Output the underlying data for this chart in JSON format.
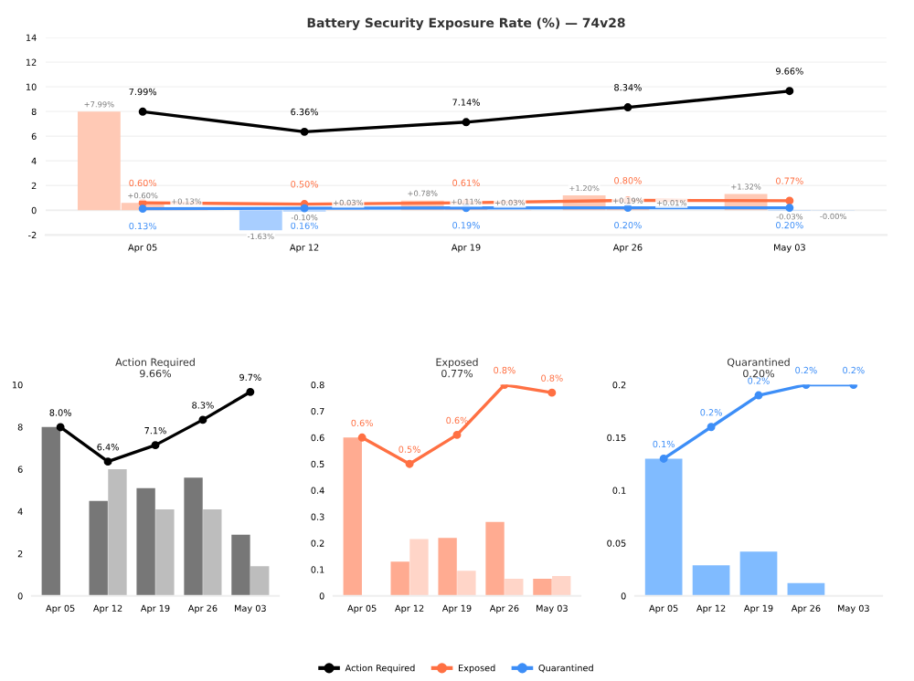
{
  "chart_data": [
    {
      "type": "line",
      "title": "Battery Security Exposure Rate (%) — 74v28",
      "categories": [
        "Apr 05",
        "Apr 12",
        "Apr 19",
        "Apr 26",
        "May 03"
      ],
      "ylim": [
        -2,
        14
      ],
      "yticks": [
        -2,
        0,
        2,
        4,
        6,
        8,
        10,
        12,
        14
      ],
      "grid": "y",
      "legend": "bottom",
      "marker": "circle",
      "line_style": "solid",
      "series": [
        {
          "type": "bar",
          "colors": [
            "#ffc9b5",
            "#a8ceff",
            "#ffc9b5",
            "#ffc9b5",
            "#ffc9b5"
          ],
          "values": [
            7.99,
            -1.63,
            0.78,
            1.2,
            1.32
          ],
          "value_labels": [
            "+7.99%",
            "-1.63%",
            "+0.78%",
            "+1.20%",
            "+1.32%"
          ]
        },
        {
          "type": "bar",
          "colors": [
            "#ffc9b5",
            "#a8ceff",
            "#ffc9b5",
            "#ffc9b5",
            "#a8ceff"
          ],
          "values": [
            0.6,
            -0.1,
            0.11,
            0.19,
            -0.03
          ],
          "value_labels": [
            "+0.60%",
            "-0.10%",
            "+0.11%",
            "+0.19%",
            "-0.03%"
          ]
        },
        {
          "type": "bar",
          "colors": [
            "#ffc9b5",
            "#ffc9b5",
            "#ffc9b5",
            "#ffc9b5",
            "#a8ceff"
          ],
          "values": [
            0.13,
            0.03,
            0.03,
            0.01,
            -0.004
          ],
          "value_labels": [
            "+0.13%",
            "+0.03%",
            "+0.03%",
            "+0.01%",
            "-0.00%"
          ]
        },
        {
          "type": "line",
          "name": "Action Required",
          "color": "#000000",
          "values": [
            7.99,
            6.36,
            7.14,
            8.34,
            9.66
          ],
          "value_labels": [
            "7.99%",
            "6.36%",
            "7.14%",
            "8.34%",
            "9.66%"
          ]
        },
        {
          "type": "line",
          "name": "Exposed",
          "color": "#ff7043",
          "values": [
            0.6,
            0.5,
            0.61,
            0.8,
            0.77
          ],
          "value_labels": [
            "0.60%",
            "0.50%",
            "0.61%",
            "0.80%",
            "0.77%"
          ]
        },
        {
          "type": "line",
          "name": "Quarantined",
          "color": "#3d8ef7",
          "values": [
            0.13,
            0.16,
            0.19,
            0.2,
            0.2
          ],
          "value_labels": [
            "0.13%",
            "0.16%",
            "0.19%",
            "0.20%",
            "0.20%"
          ]
        }
      ]
    },
    {
      "type": "bar",
      "title": "Action Required",
      "subtitle": "9.66%",
      "categories": [
        "Apr 05",
        "Apr 12",
        "Apr 19",
        "Apr 26",
        "May 03"
      ],
      "ylim": [
        0,
        10
      ],
      "yticks": [
        0,
        2,
        4,
        6,
        8,
        10
      ],
      "marker": "circle",
      "line_style": "solid",
      "series": [
        {
          "color": "#777777",
          "values": [
            8.0,
            4.5,
            5.1,
            5.6,
            2.9
          ]
        },
        {
          "color": "#bdbdbd",
          "values": [
            null,
            6.0,
            4.1,
            4.1,
            1.4
          ]
        },
        {
          "type": "line",
          "color": "#000000",
          "values": [
            7.99,
            6.36,
            7.14,
            8.34,
            9.66
          ],
          "value_labels": [
            "8.0%",
            "6.4%",
            "7.1%",
            "8.3%",
            "9.7%"
          ]
        }
      ]
    },
    {
      "type": "bar",
      "title": "Exposed",
      "subtitle": "0.77%",
      "categories": [
        "Apr 05",
        "Apr 12",
        "Apr 19",
        "Apr 26",
        "May 03"
      ],
      "ylim": [
        0,
        0.8
      ],
      "yticks": [
        0,
        0.1,
        0.2,
        0.3,
        0.4,
        0.5,
        0.6,
        0.7,
        0.8
      ],
      "marker": "circle",
      "line_style": "solid",
      "series": [
        {
          "color": "#ffab91",
          "values": [
            0.6,
            0.13,
            0.22,
            0.28,
            0.065
          ]
        },
        {
          "color": "#ffd5c8",
          "values": [
            null,
            0.215,
            0.095,
            0.065,
            0.075
          ]
        },
        {
          "type": "line",
          "color": "#ff7043",
          "values": [
            0.6,
            0.5,
            0.61,
            0.8,
            0.77
          ],
          "value_labels": [
            "0.6%",
            "0.5%",
            "0.6%",
            "0.8%",
            "0.8%"
          ]
        }
      ]
    },
    {
      "type": "bar",
      "title": "Quarantined",
      "subtitle": "0.20%",
      "categories": [
        "Apr 05",
        "Apr 12",
        "Apr 19",
        "Apr 26",
        "May 03"
      ],
      "ylim": [
        0,
        0.2
      ],
      "yticks": [
        0,
        0.05,
        0.1,
        0.15,
        0.2
      ],
      "marker": "circle",
      "line_style": "solid",
      "series": [
        {
          "color": "#80bbff",
          "values": [
            0.13,
            0.029,
            0.042,
            0.012,
            null
          ]
        },
        {
          "type": "line",
          "color": "#3d8ef7",
          "values": [
            0.13,
            0.16,
            0.19,
            0.2,
            0.2
          ],
          "value_labels": [
            "0.1%",
            "0.2%",
            "0.2%",
            "0.2%",
            "0.2%"
          ]
        }
      ]
    }
  ]
}
